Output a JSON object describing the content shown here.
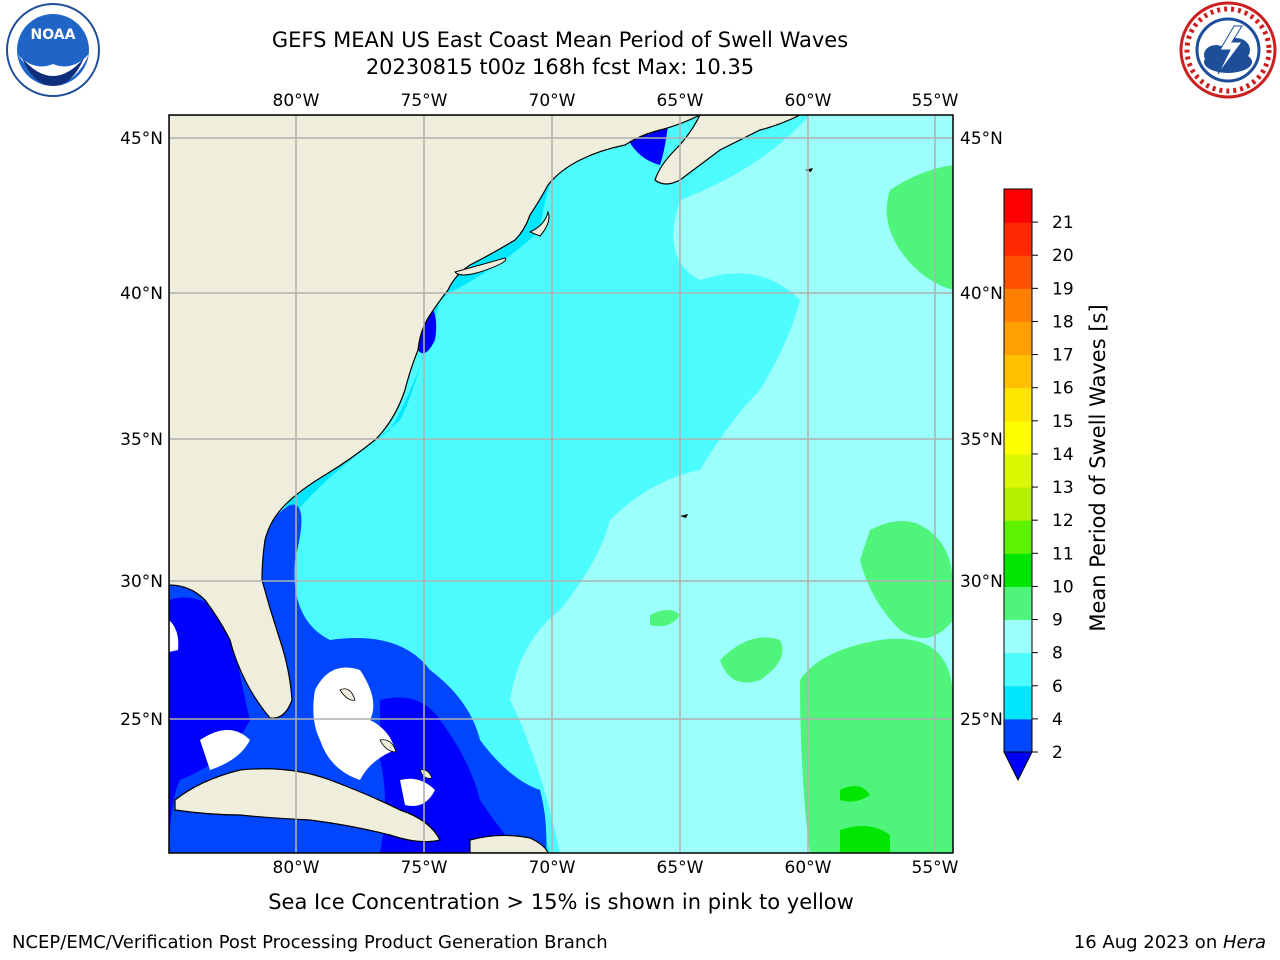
{
  "header": {
    "title_line1": "GEFS MEAN US East Coast Mean Period of Swell Waves",
    "title_line2": "20230815 t00z 168h fcst   Max: 10.35"
  },
  "logos": {
    "left": {
      "icon": "noaa-logo-icon",
      "text": "NOAA",
      "ring_text": "NATIONAL OCEANIC AND ATMOSPHERIC ADMINISTRATION · U.S. DEPARTMENT OF COMMERCE"
    },
    "right": {
      "icon": "nws-logo-icon",
      "ring_text": "NATIONAL WEATHER SERVICE"
    }
  },
  "map": {
    "lon_labels": [
      "80°W",
      "75°W",
      "70°W",
      "65°W",
      "60°W",
      "55°W"
    ],
    "lat_labels": [
      "45°N",
      "40°N",
      "35°N",
      "30°N",
      "25°N"
    ],
    "extent": {
      "lon": [
        -85,
        -54.3
      ],
      "lat": [
        20.5,
        46
      ]
    },
    "colors": {
      "land": "#efeedc",
      "grid": "#b0b0b0",
      "coast": "#000000",
      "nodata": "#ffffff"
    }
  },
  "colorbar": {
    "label": "Mean Period of Swell Waves [s]",
    "ticks": [
      "2",
      "4",
      "6",
      "8",
      "9",
      "10",
      "11",
      "12",
      "13",
      "14",
      "15",
      "16",
      "17",
      "18",
      "19",
      "20",
      "21"
    ],
    "colors": [
      "#0046ff",
      "#00e6ff",
      "#4cfcff",
      "#9cfffc",
      "#4ef57a",
      "#00e600",
      "#5ef200",
      "#b4f000",
      "#dcf800",
      "#ffff00",
      "#ffe600",
      "#ffc000",
      "#ffa000",
      "#ff8000",
      "#ff5000",
      "#ff2800",
      "#ff0000"
    ],
    "under_color": "#0000ff"
  },
  "note": "Sea Ice Concentration > 15% is shown in pink to yellow",
  "footer": {
    "left": "NCEP/EMC/Verification Post Processing Product Generation Branch",
    "date": "16 Aug 2023 on ",
    "machine": "Hera"
  }
}
